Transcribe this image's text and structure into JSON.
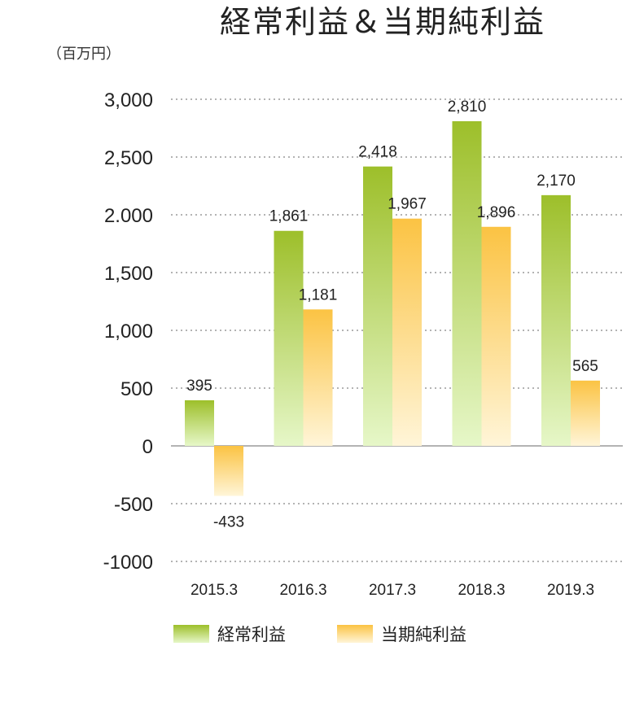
{
  "chart_data": {
    "type": "bar",
    "title": "経常利益＆当期純利益",
    "unit_label": "（百万円）",
    "categories": [
      "2015.3",
      "2016.3",
      "2017.3",
      "2018.3",
      "2019.3"
    ],
    "series": [
      {
        "name": "経常利益",
        "values": [
          395,
          1861,
          2418,
          2810,
          2170
        ],
        "labels": [
          "395",
          "1,861",
          "2,418",
          "2,810",
          "2,170"
        ],
        "color_top": "#9dbf2a",
        "color_bottom": "#e6f7c8"
      },
      {
        "name": "当期純利益",
        "values": [
          -433,
          1181,
          1967,
          1896,
          565
        ],
        "labels": [
          "-433",
          "1,181",
          "1,967",
          "1,896",
          "565"
        ],
        "color_top": "#fbc343",
        "color_bottom": "#fff5d8"
      }
    ],
    "ylim": [
      -1000,
      3000
    ],
    "yticks": [
      3000,
      2500,
      2000,
      1500,
      1000,
      500,
      0,
      -500,
      -1000
    ],
    "ytick_labels": [
      "3,000",
      "2,500",
      "2.000",
      "1,500",
      "1,000",
      "500",
      "0",
      "-500",
      "-1000"
    ],
    "grid": true,
    "legend_position": "bottom"
  }
}
